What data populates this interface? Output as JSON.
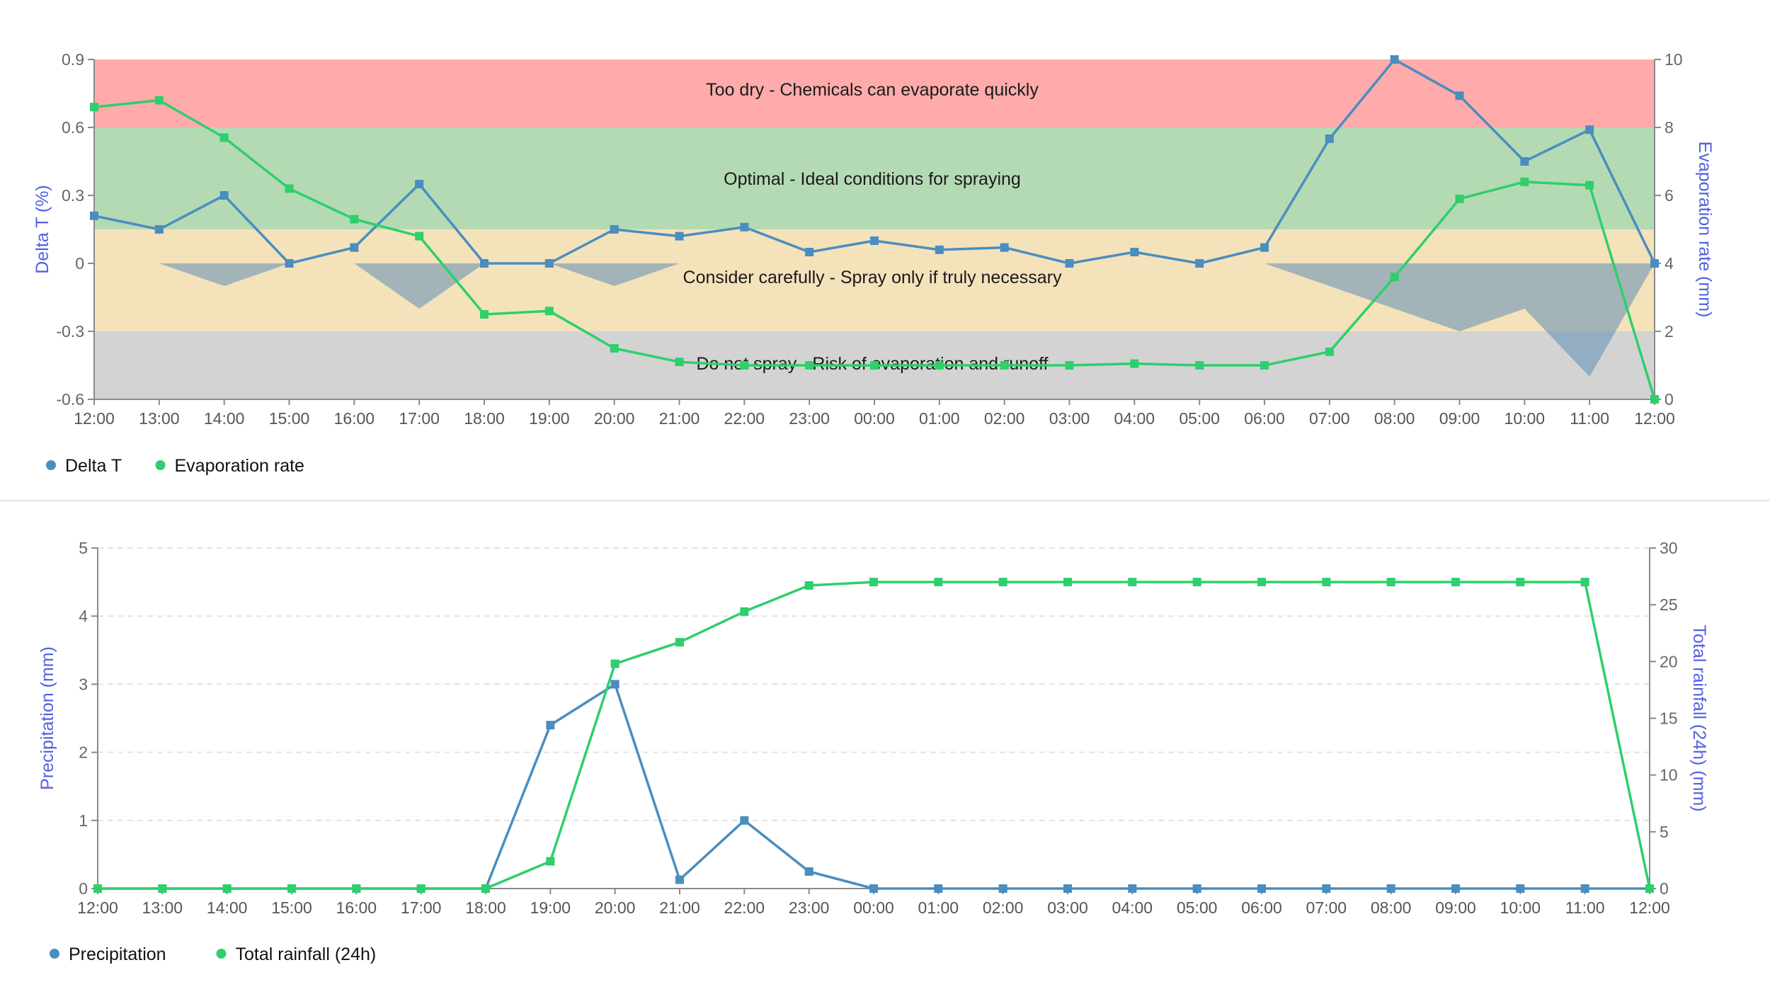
{
  "chart_data": [
    {
      "type": "line",
      "categories": [
        "12:00",
        "13:00",
        "14:00",
        "15:00",
        "16:00",
        "17:00",
        "18:00",
        "19:00",
        "20:00",
        "21:00",
        "22:00",
        "23:00",
        "00:00",
        "01:00",
        "02:00",
        "03:00",
        "04:00",
        "05:00",
        "06:00",
        "07:00",
        "08:00",
        "09:00",
        "10:00",
        "11:00",
        "12:00"
      ],
      "ylabel": "Delta T (%)",
      "y2label": "Evaporation rate (mm)",
      "ylim": [
        -0.6,
        0.9
      ],
      "yticks": [
        "0.9",
        "0.6",
        "0.3",
        "0",
        "-0.3",
        "-0.6"
      ],
      "y2lim": [
        0,
        10
      ],
      "y2ticks": [
        "10",
        "8",
        "6",
        "4",
        "2",
        "0"
      ],
      "zones": [
        {
          "from": 0.6,
          "to": 0.9,
          "color": "#ffabab",
          "label": "Too dry - Chemicals can evaporate quickly"
        },
        {
          "from": 0.15,
          "to": 0.6,
          "color": "#b4dab4",
          "label": "Optimal - Ideal conditions for spraying"
        },
        {
          "from": -0.3,
          "to": 0.15,
          "color": "#f4e2bb",
          "label": "Consider carefully - Spray only if truly necessary"
        },
        {
          "from": -0.6,
          "to": -0.3,
          "color": "#d3d3d3",
          "label": "Do not spray - Risk of evaporation and runoff"
        }
      ],
      "shade_area": [
        0,
        0,
        -0.1,
        0,
        0,
        -0.2,
        0,
        0,
        -0.1,
        0,
        0,
        0,
        0,
        0,
        0,
        0,
        0,
        0,
        0,
        -0.1,
        -0.2,
        -0.3,
        -0.2,
        -0.5,
        0
      ],
      "shade_color": "#5e8eb5",
      "series": [
        {
          "name": "Delta T",
          "axis": "left",
          "color": "#4a8dbf",
          "values": [
            0.21,
            0.15,
            0.3,
            0.0,
            0.07,
            0.35,
            0.0,
            0.0,
            0.15,
            0.12,
            0.16,
            0.05,
            0.1,
            0.06,
            0.07,
            0.0,
            0.05,
            0.0,
            0.07,
            0.55,
            0.9,
            0.74,
            0.45,
            0.59,
            0.0
          ]
        },
        {
          "name": "Evaporation rate",
          "axis": "right",
          "color": "#2ecf6c",
          "values": [
            8.6,
            8.8,
            7.7,
            6.2,
            5.3,
            4.8,
            2.5,
            2.6,
            1.5,
            1.1,
            1.0,
            1.0,
            1.0,
            1.0,
            1.0,
            1.0,
            1.05,
            1.0,
            1.0,
            1.4,
            3.6,
            5.9,
            6.4,
            6.3,
            0.0
          ]
        }
      ],
      "legend_position": "bottom-left",
      "grid": false
    },
    {
      "type": "line",
      "categories": [
        "12:00",
        "13:00",
        "14:00",
        "15:00",
        "16:00",
        "17:00",
        "18:00",
        "19:00",
        "20:00",
        "21:00",
        "22:00",
        "23:00",
        "00:00",
        "01:00",
        "02:00",
        "03:00",
        "04:00",
        "05:00",
        "06:00",
        "07:00",
        "08:00",
        "09:00",
        "10:00",
        "11:00",
        "12:00"
      ],
      "ylabel": "Precipitation (mm)",
      "y2label": "Total rainfall (24h) (mm)",
      "ylim": [
        0,
        5
      ],
      "yticks": [
        "5",
        "4",
        "3",
        "2",
        "1",
        "0"
      ],
      "y2lim": [
        0,
        30
      ],
      "y2ticks": [
        "30",
        "25",
        "20",
        "15",
        "10",
        "5",
        "0"
      ],
      "series": [
        {
          "name": "Precipitation",
          "axis": "left",
          "color": "#4a8dbf",
          "values": [
            0,
            0,
            0,
            0,
            0,
            0,
            0,
            2.4,
            3.0,
            0.13,
            1.0,
            0.25,
            0,
            0,
            0,
            0,
            0,
            0,
            0,
            0,
            0,
            0,
            0,
            0,
            0
          ]
        },
        {
          "name": "Total rainfall (24h)",
          "axis": "right",
          "color": "#2ecf6c",
          "values": [
            0,
            0,
            0,
            0,
            0,
            0,
            0,
            2.4,
            19.8,
            21.7,
            24.4,
            26.7,
            27.0,
            27.0,
            27.0,
            27.0,
            27.0,
            27.0,
            27.0,
            27.0,
            27.0,
            27.0,
            27.0,
            27.0,
            0
          ]
        }
      ],
      "legend_position": "bottom-left",
      "grid": true
    }
  ]
}
